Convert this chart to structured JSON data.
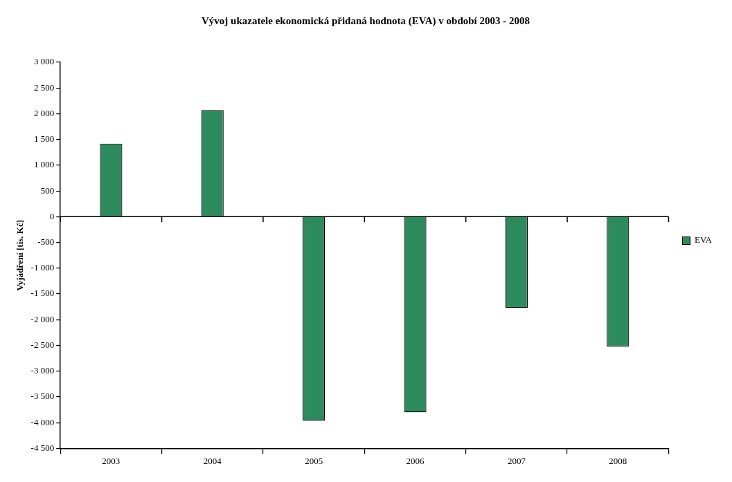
{
  "chart_data": {
    "type": "bar",
    "title": "Vývoj ukazatele ekonomická přidaná hodnota (EVA) v období 2003 - 2008",
    "ylabel": "Vyjádření [tis. Kč]",
    "categories": [
      "2003",
      "2004",
      "2005",
      "2006",
      "2007",
      "2008"
    ],
    "series": [
      {
        "name": "EVA",
        "color": "#2e8b5e",
        "values": [
          1420,
          2070,
          -3960,
          -3800,
          -1770,
          -2520
        ]
      }
    ],
    "ref_lines": [
      {
        "axis": "y",
        "value": 0,
        "color": "#000000"
      }
    ],
    "ylim": [
      -4500,
      3000
    ],
    "yticks": [
      {
        "value": -4500,
        "label": "-4 500"
      },
      {
        "value": -4000,
        "label": "-4 000"
      },
      {
        "value": -3500,
        "label": "-3 500"
      },
      {
        "value": -3000,
        "label": "-3 000"
      },
      {
        "value": -2500,
        "label": "-2 500"
      },
      {
        "value": -2000,
        "label": "-2 000"
      },
      {
        "value": -1500,
        "label": "-1 500"
      },
      {
        "value": -1000,
        "label": "-1 000"
      },
      -500,
      0,
      500,
      {
        "value": 1000,
        "label": "1 000"
      },
      {
        "value": 1500,
        "label": "1 500"
      },
      {
        "value": 2000,
        "label": "2 000"
      },
      {
        "value": 2500,
        "label": "2 500"
      },
      {
        "value": 3000,
        "label": "3 000"
      }
    ],
    "legend": "right",
    "grid": false
  }
}
